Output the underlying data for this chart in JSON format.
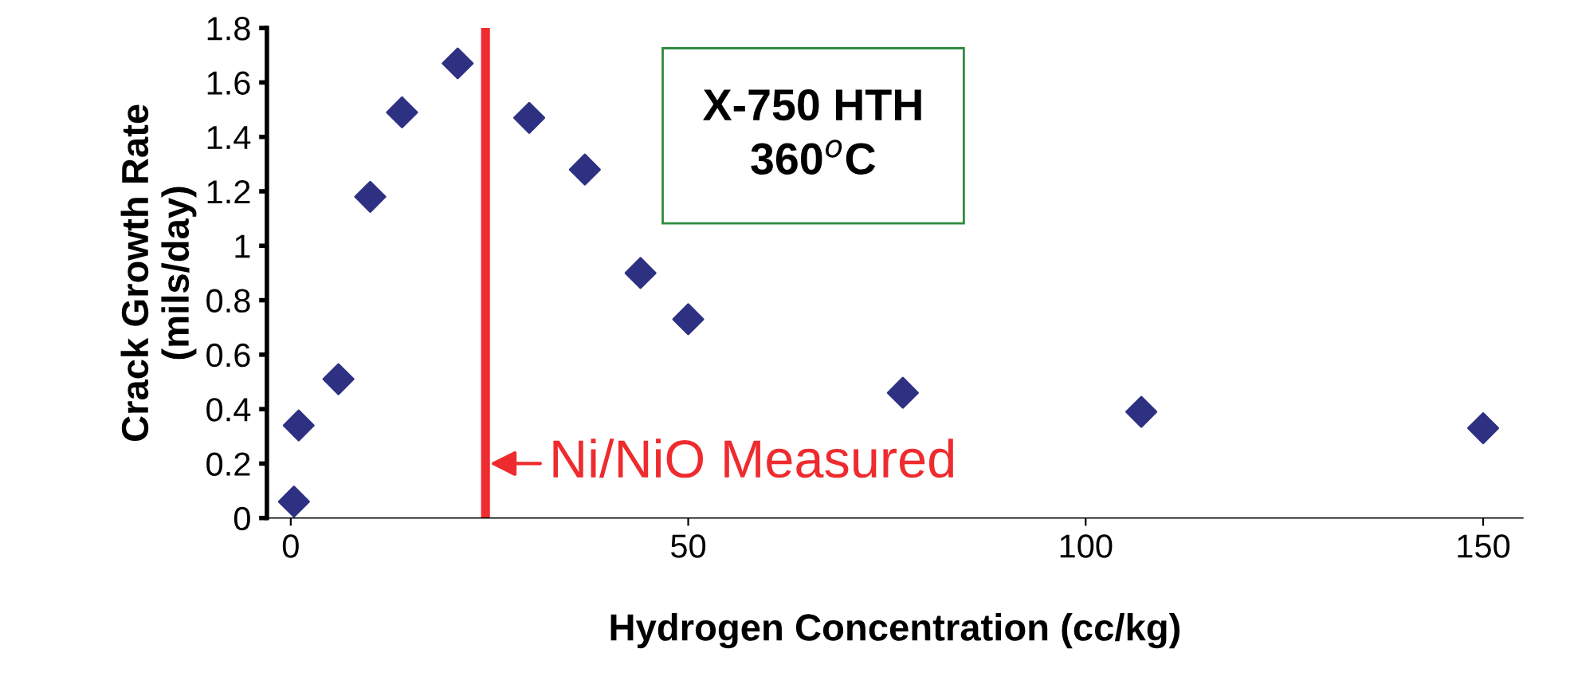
{
  "chart_data": {
    "type": "scatter",
    "xlabel": "Hydrogen Concentration (cc/kg)",
    "ylabel": "Crack Growth Rate\n(mils/day)",
    "x": [
      0.4,
      1,
      6,
      10,
      14,
      21,
      30,
      37,
      44,
      50,
      77,
      107,
      150
    ],
    "series": [
      {
        "color": "#2e3182",
        "values": [
          0.06,
          0.34,
          0.51,
          1.18,
          1.49,
          1.67,
          1.47,
          1.28,
          0.9,
          0.73,
          0.46,
          0.39,
          0.33
        ]
      }
    ],
    "marker": "diamond",
    "xlim": [
      -3,
      155
    ],
    "xticks": [
      0,
      50,
      100,
      150
    ],
    "ylim": [
      0,
      1.8
    ],
    "yticks": [
      0,
      0.2,
      0.4,
      0.6,
      0.8,
      1,
      1.2,
      1.4,
      1.6,
      1.8
    ],
    "ref_lines": [
      {
        "axis": "x",
        "value": 24.5,
        "label": "Ni/NiO Measured",
        "color": "#ee2b2e"
      }
    ],
    "annotations": [
      "X-750 HTH\n360$^{o}$C"
    ],
    "grid": false,
    "legend": false
  }
}
